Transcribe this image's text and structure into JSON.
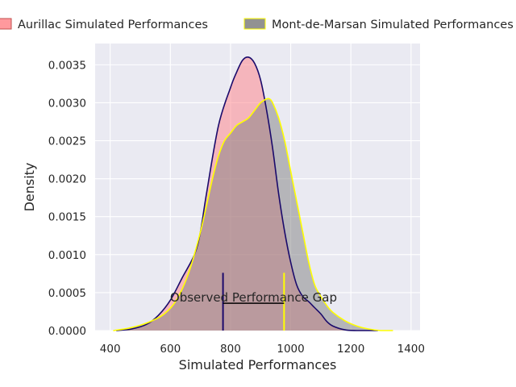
{
  "chart_data": {
    "type": "area",
    "title": "",
    "xlabel": "Simulated Performances",
    "ylabel": "Density",
    "xlim": [
      350,
      1430
    ],
    "ylim": [
      0,
      0.00378
    ],
    "x_ticks": [
      400,
      600,
      800,
      1000,
      1200,
      1400
    ],
    "y_ticks": [
      0.0,
      0.0005,
      0.001,
      0.0015,
      0.002,
      0.0025,
      0.003,
      0.0035
    ],
    "y_tick_labels": [
      "0.0000",
      "0.0005",
      "0.0010",
      "0.0015",
      "0.0020",
      "0.0025",
      "0.0030",
      "0.0035"
    ],
    "grid": true,
    "legend_position": "top",
    "series": [
      {
        "name": "Aurillac Simulated Performances",
        "fill": "#ff7f85",
        "line": "#1a0a6b",
        "x": [
          420,
          470,
          520,
          560,
          600,
          640,
          680,
          700,
          720,
          760,
          800,
          820,
          840,
          860,
          880,
          900,
          920,
          940,
          960,
          980,
          1000,
          1020,
          1040,
          1060,
          1080,
          1100,
          1120,
          1140,
          1180,
          1220,
          1260,
          1290
        ],
        "y": [
          0.0,
          2e-05,
          8e-05,
          0.0002,
          0.0004,
          0.0007,
          0.001,
          0.0013,
          0.0018,
          0.0027,
          0.0032,
          0.0034,
          0.00356,
          0.0036,
          0.00352,
          0.0033,
          0.0029,
          0.0024,
          0.0018,
          0.0013,
          0.0009,
          0.0006,
          0.00045,
          0.00038,
          0.0003,
          0.00022,
          0.00012,
          6e-05,
          1e-05,
          0.0,
          0.0,
          0.0
        ]
      },
      {
        "name": "Mont-de-Marsan Simulated Performances",
        "fill": "#7f7f7f",
        "line": "#ffff00",
        "x": [
          410,
          460,
          500,
          540,
          580,
          620,
          660,
          700,
          740,
          760,
          780,
          800,
          820,
          840,
          860,
          880,
          900,
          920,
          930,
          940,
          960,
          980,
          1000,
          1020,
          1040,
          1060,
          1080,
          1100,
          1120,
          1140,
          1180,
          1220,
          1260,
          1300,
          1340
        ],
        "y": [
          0.0,
          3e-05,
          7e-05,
          0.00013,
          0.00022,
          0.0004,
          0.00075,
          0.0013,
          0.002,
          0.0023,
          0.0025,
          0.0026,
          0.0027,
          0.00275,
          0.0028,
          0.0029,
          0.003,
          0.00305,
          0.00305,
          0.003,
          0.0028,
          0.0025,
          0.0021,
          0.0017,
          0.0013,
          0.0009,
          0.0006,
          0.00045,
          0.00033,
          0.00024,
          0.00013,
          6e-05,
          2e-05,
          0.0,
          0.0
        ]
      }
    ],
    "annotation": {
      "label": "Observed Performance Gap",
      "x_start": 775,
      "x_end": 978,
      "y_level": 0.00036,
      "start_top": 0.00076,
      "end_top": 0.00076,
      "start_color": "#1a0a6b",
      "end_color": "#ffff00",
      "bar_color": "#000000"
    },
    "colors": {
      "background": "#eaeaf2",
      "grid": "#ffffff",
      "text": "#262626"
    }
  }
}
